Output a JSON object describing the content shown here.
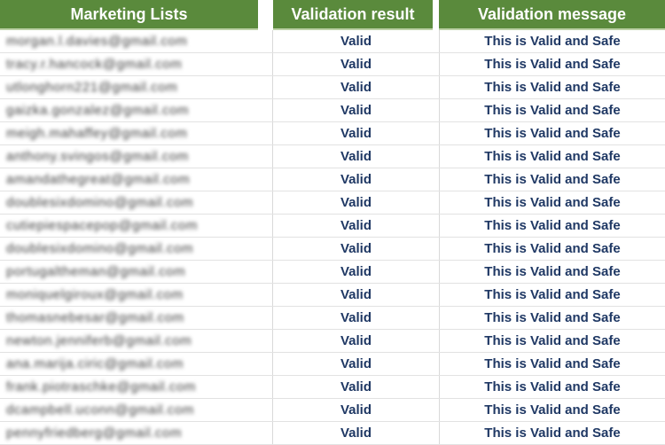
{
  "table": {
    "headers": [
      "Marketing Lists",
      "Validation result",
      "Validation message"
    ],
    "rows": [
      {
        "email": "morgan.l.davies@gmail.com",
        "result": "Valid",
        "message": "This is Valid and Safe"
      },
      {
        "email": "tracy.r.hancock@gmail.com",
        "result": "Valid",
        "message": "This is Valid and Safe"
      },
      {
        "email": "utlonghorn221@gmail.com",
        "result": "Valid",
        "message": "This is Valid and Safe"
      },
      {
        "email": "gaizka.gonzalez@gmail.com",
        "result": "Valid",
        "message": "This is Valid and Safe"
      },
      {
        "email": "meigh.mahaffey@gmail.com",
        "result": "Valid",
        "message": "This is Valid and Safe"
      },
      {
        "email": "anthony.svingos@gmail.com",
        "result": "Valid",
        "message": "This is Valid and Safe"
      },
      {
        "email": "amandathegreat@gmail.com",
        "result": "Valid",
        "message": "This is Valid and Safe"
      },
      {
        "email": "doublesixdomino@gmail.com",
        "result": "Valid",
        "message": "This is Valid and Safe"
      },
      {
        "email": "cutiepiespacepop@gmail.com",
        "result": "Valid",
        "message": "This is Valid and Safe"
      },
      {
        "email": "doublesixdomino@gmail.com",
        "result": "Valid",
        "message": "This is Valid and Safe"
      },
      {
        "email": "portugaltheman@gmail.com",
        "result": "Valid",
        "message": "This is Valid and Safe"
      },
      {
        "email": "moniquelgiroux@gmail.com",
        "result": "Valid",
        "message": "This is Valid and Safe"
      },
      {
        "email": "thomasnebesar@gmail.com",
        "result": "Valid",
        "message": "This is Valid and Safe"
      },
      {
        "email": "newton.jenniferb@gmail.com",
        "result": "Valid",
        "message": "This is Valid and Safe"
      },
      {
        "email": "ana.marija.ciric@gmail.com",
        "result": "Valid",
        "message": "This is Valid and Safe"
      },
      {
        "email": "frank.piotraschke@gmail.com",
        "result": "Valid",
        "message": "This is Valid and Safe"
      },
      {
        "email": "dcampbell.uconn@gmail.com",
        "result": "Valid",
        "message": "This is Valid and Safe"
      },
      {
        "email": "pennyfriedberg@gmail.com",
        "result": "Valid",
        "message": "This is Valid and Safe"
      }
    ]
  },
  "colors": {
    "header_bg": "#5A8A3C",
    "header_border_bottom": "#BCD0A5",
    "header_text": "#FFFFFF",
    "value_text": "#1F3864",
    "email_text": "#3C3C3C",
    "gridline": "#D9D9D9",
    "row_bg": "#FFFFFF"
  }
}
